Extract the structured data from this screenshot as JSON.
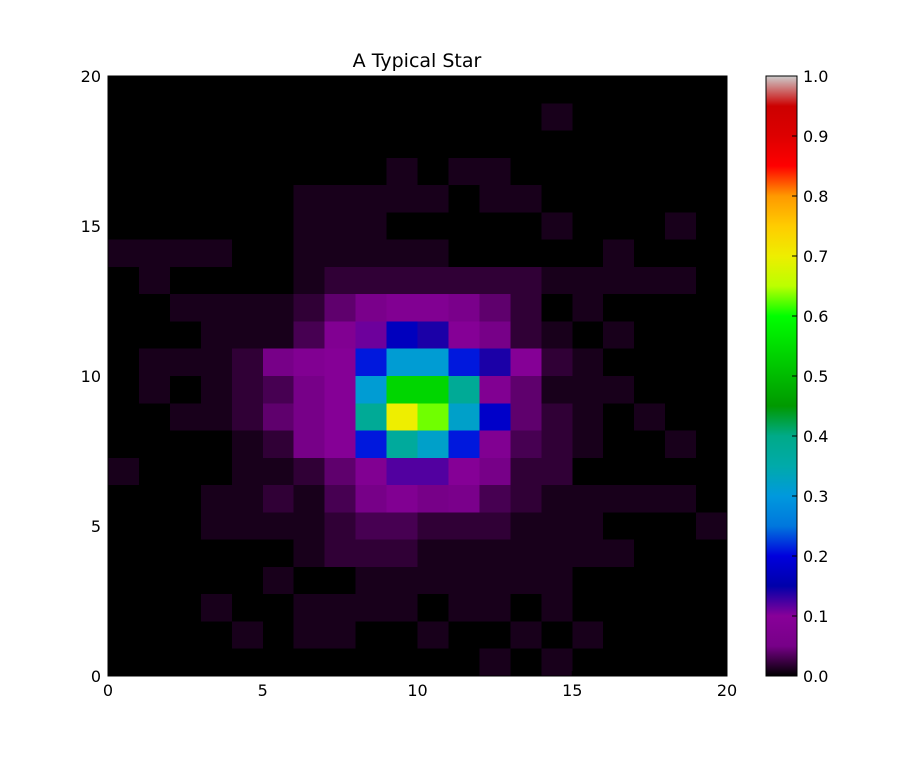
{
  "chart_data": {
    "type": "heatmap",
    "title": "A Typical Star",
    "xlabel": "",
    "ylabel": "",
    "xlim": [
      0,
      20
    ],
    "ylim": [
      0,
      20
    ],
    "x_ticks": [
      "0",
      "5",
      "10",
      "15",
      "20"
    ],
    "y_ticks": [
      "0",
      "5",
      "10",
      "15",
      "20"
    ],
    "colormap": "nipy_spectral",
    "grid": false,
    "colorbar": {
      "range": [
        0.0,
        1.0
      ],
      "ticks": [
        "0.0",
        "0.1",
        "0.2",
        "0.3",
        "0.4",
        "0.5",
        "0.6",
        "0.7",
        "0.8",
        "0.9",
        "1.0"
      ]
    },
    "rows_top_to_bottom": [
      [
        0,
        0,
        0,
        0,
        0,
        0,
        0,
        0,
        0,
        0,
        0,
        0,
        0,
        0,
        0,
        0,
        0,
        0,
        0,
        0
      ],
      [
        0,
        0,
        0,
        0,
        0,
        0,
        0,
        0,
        0,
        0,
        0,
        0,
        0,
        0,
        0.01,
        0,
        0,
        0,
        0,
        0
      ],
      [
        0,
        0,
        0,
        0,
        0,
        0,
        0,
        0,
        0,
        0,
        0,
        0,
        0,
        0,
        0,
        0,
        0,
        0,
        0,
        0
      ],
      [
        0,
        0,
        0,
        0,
        0,
        0,
        0,
        0,
        0,
        0.01,
        0,
        0.01,
        0.01,
        0,
        0,
        0,
        0,
        0,
        0,
        0
      ],
      [
        0,
        0,
        0,
        0,
        0,
        0,
        0.01,
        0.01,
        0.01,
        0.01,
        0.01,
        0,
        0.01,
        0.01,
        0,
        0,
        0,
        0,
        0,
        0
      ],
      [
        0,
        0,
        0,
        0,
        0,
        0,
        0.01,
        0.01,
        0.01,
        0,
        0,
        0,
        0,
        0,
        0.01,
        0,
        0,
        0,
        0.01,
        0
      ],
      [
        0.01,
        0.01,
        0.01,
        0.01,
        0,
        0,
        0.01,
        0.01,
        0.01,
        0.01,
        0.01,
        0,
        0,
        0,
        0,
        0,
        0.01,
        0,
        0,
        0
      ],
      [
        0,
        0.01,
        0,
        0,
        0,
        0,
        0.01,
        0.02,
        0.02,
        0.02,
        0.02,
        0.02,
        0.02,
        0.02,
        0.01,
        0.01,
        0.01,
        0.01,
        0.01,
        0
      ],
      [
        0,
        0,
        0.01,
        0.01,
        0.01,
        0.01,
        0.02,
        0.04,
        0.06,
        0.08,
        0.08,
        0.06,
        0.04,
        0.02,
        0,
        0.01,
        0,
        0,
        0,
        0
      ],
      [
        0,
        0,
        0,
        0.01,
        0.01,
        0.01,
        0.03,
        0.08,
        0.11,
        0.17,
        0.14,
        0.09,
        0.05,
        0.02,
        0.01,
        0,
        0.01,
        0,
        0,
        0
      ],
      [
        0,
        0.01,
        0.01,
        0.01,
        0.02,
        0.05,
        0.08,
        0.09,
        0.21,
        0.31,
        0.31,
        0.21,
        0.14,
        0.09,
        0.02,
        0.01,
        0,
        0,
        0,
        0
      ],
      [
        0,
        0.01,
        0,
        0.01,
        0.02,
        0.03,
        0.05,
        0.09,
        0.31,
        0.54,
        0.54,
        0.38,
        0.08,
        0.04,
        0.01,
        0.01,
        0.01,
        0,
        0,
        0
      ],
      [
        0,
        0,
        0.01,
        0.01,
        0.02,
        0.04,
        0.05,
        0.09,
        0.38,
        0.7,
        0.63,
        0.32,
        0.18,
        0.04,
        0.02,
        0.01,
        0,
        0.01,
        0,
        0
      ],
      [
        0,
        0,
        0,
        0,
        0.01,
        0.02,
        0.05,
        0.09,
        0.21,
        0.37,
        0.32,
        0.21,
        0.08,
        0.03,
        0.02,
        0.01,
        0,
        0,
        0.01,
        0
      ],
      [
        0.01,
        0,
        0,
        0,
        0.01,
        0.01,
        0.02,
        0.04,
        0.08,
        0.12,
        0.12,
        0.09,
        0.05,
        0.02,
        0.02,
        0,
        0,
        0,
        0,
        0
      ],
      [
        0,
        0,
        0,
        0.01,
        0.01,
        0.02,
        0.01,
        0.03,
        0.05,
        0.08,
        0.05,
        0.06,
        0.03,
        0.02,
        0.01,
        0.01,
        0.01,
        0.01,
        0.01,
        0
      ],
      [
        0,
        0,
        0,
        0.01,
        0.01,
        0.01,
        0.01,
        0.02,
        0.03,
        0.03,
        0.02,
        0.02,
        0.02,
        0.01,
        0.01,
        0.01,
        0,
        0,
        0,
        0.01
      ],
      [
        0,
        0,
        0,
        0,
        0,
        0,
        0.01,
        0.02,
        0.02,
        0.02,
        0.01,
        0.01,
        0.01,
        0.01,
        0.01,
        0.01,
        0.01,
        0,
        0,
        0
      ],
      [
        0,
        0,
        0,
        0,
        0,
        0.01,
        0,
        0,
        0.01,
        0.01,
        0.01,
        0.01,
        0.01,
        0.01,
        0.01,
        0,
        0,
        0,
        0,
        0
      ],
      [
        0,
        0,
        0,
        0.01,
        0,
        0,
        0.01,
        0.01,
        0.01,
        0.01,
        0,
        0.01,
        0.01,
        0,
        0.01,
        0,
        0,
        0,
        0,
        0
      ],
      [
        0,
        0,
        0,
        0,
        0.01,
        0,
        0.01,
        0.01,
        0,
        0,
        0.01,
        0,
        0,
        0.01,
        0,
        0.01,
        0,
        0,
        0,
        0
      ],
      [
        0,
        0,
        0,
        0,
        0,
        0,
        0,
        0,
        0,
        0,
        0,
        0,
        0.01,
        0,
        0.01,
        0,
        0,
        0,
        0,
        0
      ]
    ]
  }
}
